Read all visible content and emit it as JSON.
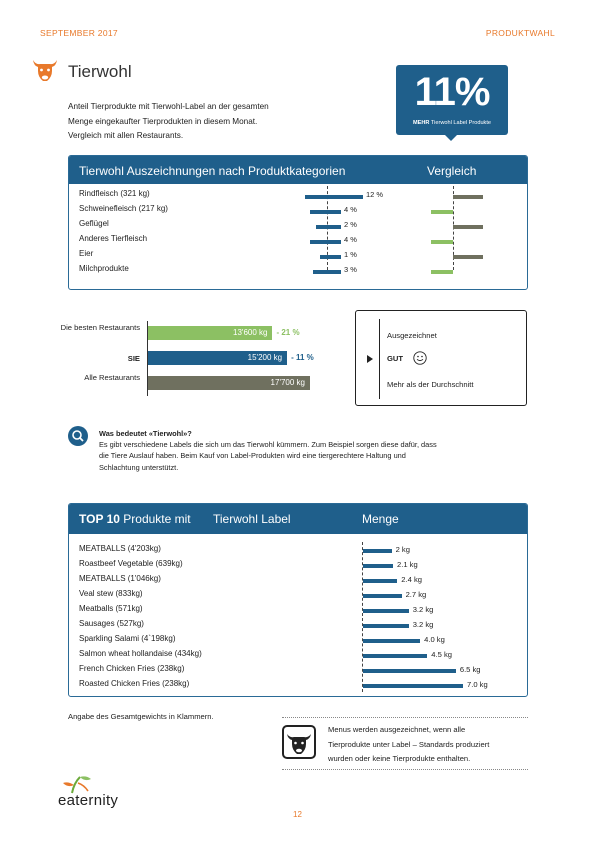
{
  "header": {
    "left": "SEPTEMBER 2017",
    "right": "PRODUKTWAHL"
  },
  "section": {
    "title": "Tierwohl",
    "intro": [
      "Anteil Tierprodukte mit Tierwohl-Label an der gesamten",
      "Menge eingekaufter Tierprodukten in diesem Monat.",
      "Vergleich mit allen Restaurants."
    ]
  },
  "stat": {
    "value": "11%",
    "label_bold": "MEHR",
    "label": "Tierwohl Label Produkte"
  },
  "categories_panel": {
    "title": "Tierwohl Auszeichnungen nach Produktkategorien",
    "compare_title": "Vergleich",
    "rows": [
      {
        "label": "Rindfleisch (321 kg)",
        "value_text": "12 %",
        "value": 12,
        "compare": "above"
      },
      {
        "label": "Schweinefleisch (217 kg)",
        "value_text": "4 %",
        "value": 4,
        "compare": "below"
      },
      {
        "label": "Geflügel",
        "value_text": "2 %",
        "value": 2,
        "compare": "above"
      },
      {
        "label": "Anderes Tierfleisch",
        "value_text": "4 %",
        "value": 4,
        "compare": "below"
      },
      {
        "label": "Eier",
        "value_text": "1 %",
        "value": 1,
        "compare": "above"
      },
      {
        "label": "Milchprodukte",
        "value_text": "3 %",
        "value": 3,
        "compare": "below"
      }
    ]
  },
  "comparison": {
    "rows": [
      {
        "label": "Die besten Restaurants",
        "value_text": "13'600 kg",
        "value": 13600,
        "diff": "- 21 %",
        "color": "#8cc063",
        "diff_color": "#8cc063",
        "bold": false
      },
      {
        "label": "SIE",
        "value_text": "15'200 kg",
        "value": 15200,
        "diff": "- 11 %",
        "color": "#1f5f8b",
        "diff_color": "#1f5f8b",
        "bold": true
      },
      {
        "label": "Alle Restaurants",
        "value_text": "17'700 kg",
        "value": 17700,
        "diff": "",
        "color": "#6f705f",
        "diff_color": "#6f705f",
        "bold": false
      }
    ]
  },
  "legend": {
    "top": "Ausgezeichnet",
    "current": "GUT",
    "bottom": "Mehr als der Durchschnitt"
  },
  "info": {
    "title": "Was bedeutet «Tierwohl»?",
    "lines": [
      "Es gibt verschiedene Labels die sich um das Tierwohl kümmern. Zum Beispiel sorgen diese dafür, dass",
      "die Tiere Auslauf haben. Beim Kauf von Label-Produkten wird eine tiergerechtere Haltung und",
      "Schlachtung unterstützt."
    ]
  },
  "top10": {
    "title_bold": "TOP 10",
    "title_a": "Produkte mit",
    "title_b": "Tierwohl Label",
    "quantity_header": "Menge",
    "rows": [
      {
        "name": "MEATBALLS  (4'203kg)",
        "value_text": "2 kg",
        "value": 2.0
      },
      {
        "name": "Roastbeef Vegetable (639kg)",
        "value_text": "2.1 kg",
        "value": 2.1
      },
      {
        "name": "MEATBALLS  (1'046kg)",
        "value_text": "2.4 kg",
        "value": 2.4
      },
      {
        "name": "Veal stew (833kg)",
        "value_text": "2.7 kg",
        "value": 2.7
      },
      {
        "name": "Meatballs (571kg)",
        "value_text": "3.2 kg",
        "value": 3.2
      },
      {
        "name": "Sausages (527kg)",
        "value_text": "3.2 kg",
        "value": 3.2
      },
      {
        "name": "Sparkling Salami (4`198kg)",
        "value_text": "4.0 kg",
        "value": 4.0
      },
      {
        "name": "Salmon wheat hollandaise (434kg)",
        "value_text": "4.5 kg",
        "value": 4.5
      },
      {
        "name": "French Chicken Fries (238kg)",
        "value_text": "6.5 kg",
        "value": 6.5
      },
      {
        "name": "Roasted Chicken Fries (238kg)",
        "value_text": "7.0 kg",
        "value": 7.0
      }
    ]
  },
  "footnote": "Angabe des  Gesamtgewichts in Klammern.",
  "menu_note": [
    "Menus werden ausgezeichnet, wenn alle",
    "Tierprodukte unter Label – Standards produziert",
    "wurden oder keine Tierprodukte enthalten."
  ],
  "brand": {
    "name": "eaternity"
  },
  "page_number": "12",
  "colors": {
    "accent": "#e8792b",
    "primary": "#1f5f8b",
    "green": "#8cc063",
    "gray": "#6f705f"
  }
}
